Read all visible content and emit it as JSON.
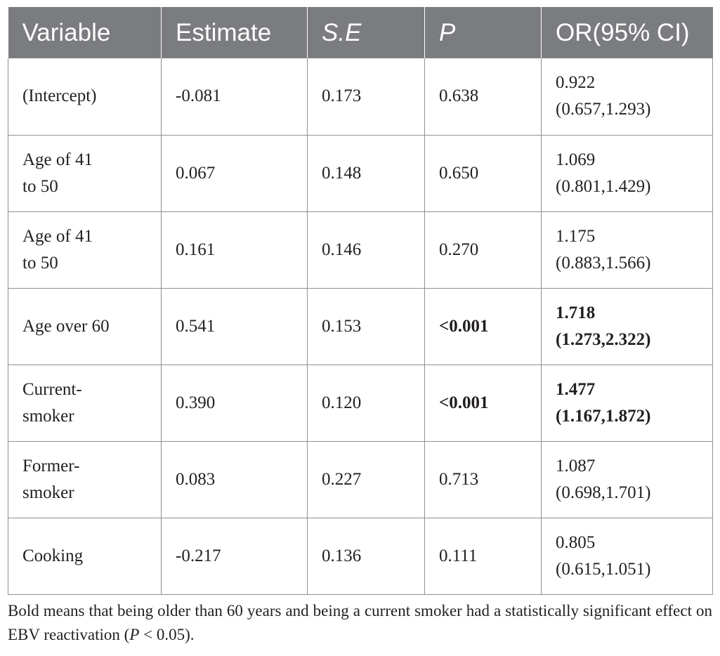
{
  "table": {
    "headers": [
      {
        "label": "Variable",
        "italic": false
      },
      {
        "label": "Estimate",
        "italic": false
      },
      {
        "label": "S.E",
        "italic": true
      },
      {
        "label": "P",
        "italic": true
      },
      {
        "label": "OR(95% CI)",
        "italic": false
      }
    ],
    "rows": [
      {
        "variable": [
          "(Intercept)"
        ],
        "estimate": "-0.081",
        "se": "0.173",
        "p": "0.638",
        "or": [
          "0.922",
          "(0.657,1.293)"
        ],
        "bold": false
      },
      {
        "variable": [
          "Age of 41",
          "to 50"
        ],
        "estimate": "0.067",
        "se": "0.148",
        "p": "0.650",
        "or": [
          "1.069",
          "(0.801,1.429)"
        ],
        "bold": false
      },
      {
        "variable": [
          "Age of 41",
          "to 50"
        ],
        "estimate": "0.161",
        "se": "0.146",
        "p": "0.270",
        "or": [
          "1.175",
          "(0.883,1.566)"
        ],
        "bold": false
      },
      {
        "variable": [
          "Age over 60"
        ],
        "estimate": "0.541",
        "se": "0.153",
        "p": "<0.001",
        "or": [
          "1.718",
          "(1.273,2.322)"
        ],
        "bold": true
      },
      {
        "variable": [
          "Current-",
          "smoker"
        ],
        "estimate": "0.390",
        "se": "0.120",
        "p": "<0.001",
        "or": [
          "1.477",
          "(1.167,1.872)"
        ],
        "bold": true
      },
      {
        "variable": [
          "Former-",
          "smoker"
        ],
        "estimate": "0.083",
        "se": "0.227",
        "p": "0.713",
        "or": [
          "1.087",
          "(0.698,1.701)"
        ],
        "bold": false
      },
      {
        "variable": [
          "Cooking"
        ],
        "estimate": "-0.217",
        "se": "0.136",
        "p": "0.111",
        "or": [
          "0.805",
          "(0.615,1.051)"
        ],
        "bold": false
      }
    ]
  },
  "footnote": {
    "text_before": "Bold means that being older than 60 years and being a current smoker had a statistically significant effect on EBV reactivation (",
    "p_symbol": "P",
    "text_after": " < 0.05)."
  }
}
